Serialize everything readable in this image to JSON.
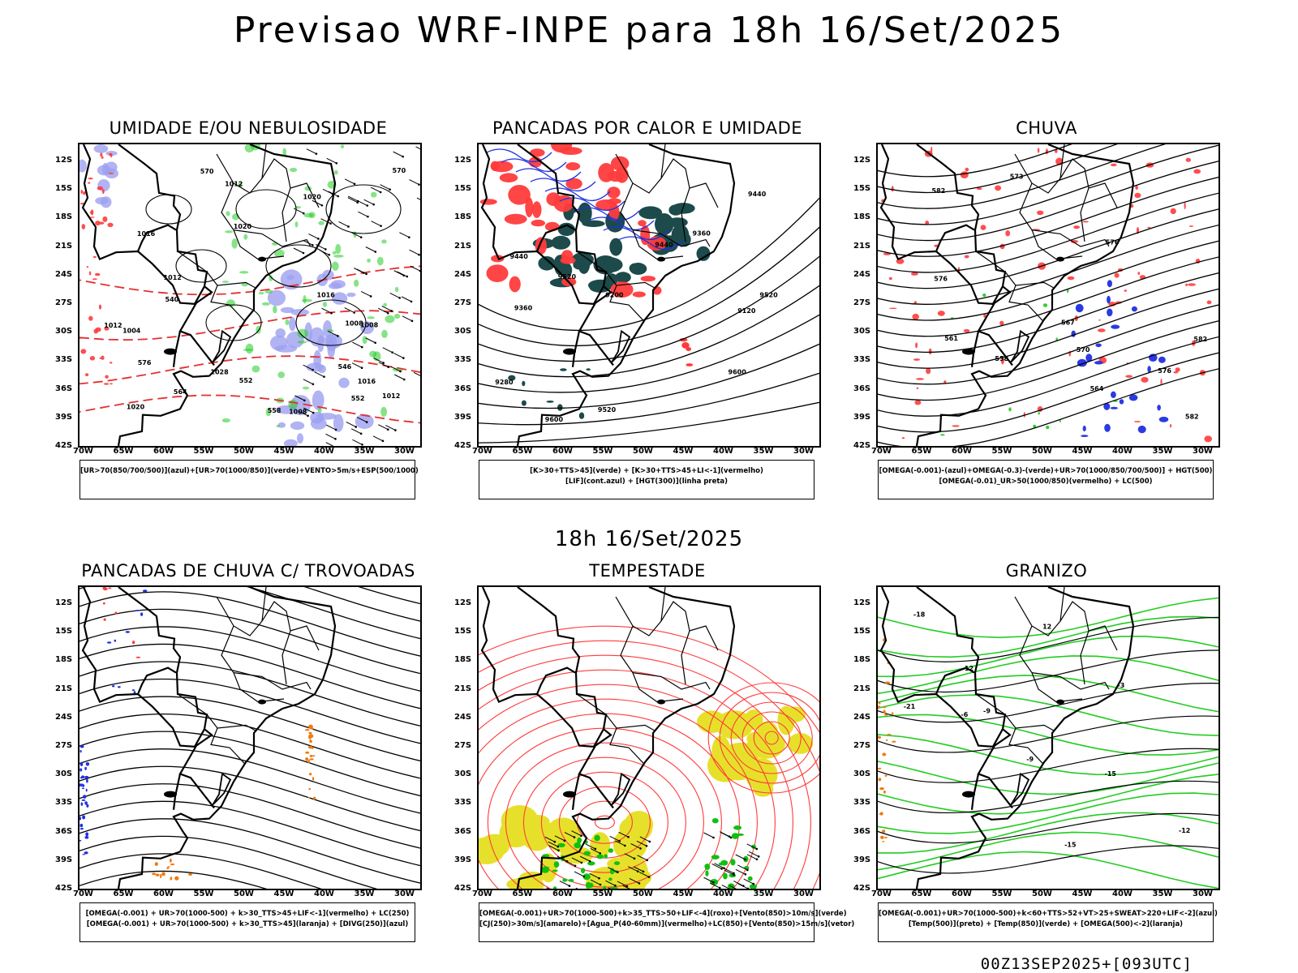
{
  "header": {
    "title": "Previsao WRF-INPE  para 18h 16/Set/2025"
  },
  "mid_label": "18h 16/Set/2025",
  "footer": "00Z13SEP2025+[093UTC]",
  "axes": {
    "lat_labels": [
      "12S",
      "15S",
      "18S",
      "21S",
      "24S",
      "27S",
      "30S",
      "33S",
      "36S",
      "39S",
      "42S"
    ],
    "lon_labels": [
      "70W",
      "65W",
      "60W",
      "55W",
      "50W",
      "45W",
      "40W",
      "35W",
      "30W"
    ]
  },
  "panels": [
    {
      "title": "UMIDADE E/OU NEBULOSIDADE",
      "legend": [
        "[UR>70(850/700/500)](azul)+[UR>70(1000/850)](verde)+VENTO>5m/s+ESP(500/1000)"
      ],
      "contour_labels": [
        "1008",
        "1004",
        "1008",
        "1012",
        "1016",
        "1020",
        "1016",
        "1012",
        "1012",
        "1020",
        "1016",
        "1028",
        "1020",
        "1012",
        "1008",
        "576",
        "570",
        "564",
        "552",
        "558",
        "552",
        "546",
        "540",
        "570"
      ]
    },
    {
      "title": "PANCADAS POR CALOR E UMIDADE",
      "legend": [
        "[K>30+TTS>45](verde)  +  [K>30+TTS>45+LI<-1](vermelho)",
        "[LIF](cont.azul)  +  [HGT(300)](linha preta)"
      ],
      "contour_labels": [
        "9600",
        "9600",
        "9520",
        "9520",
        "9520",
        "9440",
        "9440",
        "9440",
        "9360",
        "9360",
        "9280",
        "9200",
        "9120"
      ]
    },
    {
      "title": "CHUVA",
      "legend": [
        "[OMEGA(-0.001)-(azul)+OMEGA(-0.3)-(verde)+UR>70(1000/850/700/500)]  +  HGT(500)",
        "[OMEGA(-0.01)_UR>50(1000/850)(vermelho)  +  LC(500)"
      ],
      "contour_labels": [
        "582",
        "582",
        "582",
        "576",
        "576",
        "573",
        "570",
        "567",
        "564",
        "561",
        "558",
        "576"
      ]
    },
    {
      "title": "PANCADAS DE CHUVA C/ TROVOADAS",
      "legend": [
        "[OMEGA(-0.001)  +  UR>70(1000-500)  +  k>30_TTS>45+LIF<-1](vermelho)  +  LC(250)",
        "[OMEGA(-0.001)  +  UR>70(1000-500)  +  k>30_TTS>45](laranja)  +  [DIVG(250)](azul)"
      ],
      "contour_labels": []
    },
    {
      "title": "TEMPESTADE",
      "legend": [
        "[OMEGA(-0.001)+UR>70(1000-500)+k>35_TTS>50+LIF<-4](roxo)+[Vento(850)>10m/s](verde)",
        "[CJ(250)>30m/s](amarelo)+[Agua_P(40-60mm)](vermelho)+LC(850)+[Vento(850)>15m/s](vetor)"
      ],
      "contour_labels": []
    },
    {
      "title": "GRANIZO",
      "legend": [
        "[OMEGA(-0.001)+UR>70(1000-500)+k<60+TTS>52+VT>25+SWEAT>220+LIF<-2](azul)",
        "[Temp(500)](preto)  +  [Temp(850)](verde)  +  [OMEGA(500)<-2](laranja)"
      ],
      "contour_labels": [
        "-3",
        "-6",
        "-9",
        "-12",
        "-15",
        "-18",
        "-21",
        "-12",
        "-15",
        "12",
        "-9"
      ]
    }
  ],
  "colors": {
    "black": "#000000",
    "red": "#ff3b3b",
    "dashed_red": "#e53030",
    "green": "#22cc22",
    "blue": "#2030e0",
    "lavender": "#9ea0f0",
    "dark_teal": "#1d4a4a",
    "yellow": "#e6e02a",
    "orange": "#f07a10",
    "wind_green": "#10c010"
  }
}
